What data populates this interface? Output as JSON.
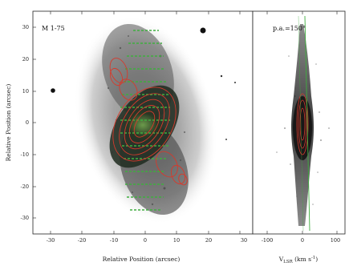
{
  "figure": {
    "left_panel": {
      "label": "M 1-75",
      "xlabel": "Relative Position (arcsec)",
      "ylabel": "Relative Position (arcsec)",
      "x_ticks": [
        "-30",
        "-20",
        "-10",
        "0",
        "10",
        "20",
        "30"
      ],
      "y_ticks": [
        "30",
        "20",
        "10",
        "0",
        "-10",
        "-20",
        "-30"
      ],
      "x_range": [
        -35,
        35
      ],
      "y_range": [
        -35,
        35
      ]
    },
    "right_panel": {
      "label": "p.a.=150°",
      "xlabel_main": "V",
      "xlabel_sub": "LSR",
      "xlabel_unit": " (km s",
      "xlabel_exp": "-1",
      "xlabel_close": ")",
      "x_ticks": [
        "-100",
        "0",
        "100"
      ],
      "x_range": [
        -130,
        130
      ]
    },
    "colors": {
      "nebula_dark": "#1e2a1e",
      "nebula_mid": "#7a7a7a",
      "contour": "#d63a2c",
      "slit": "#3fae3f"
    }
  }
}
